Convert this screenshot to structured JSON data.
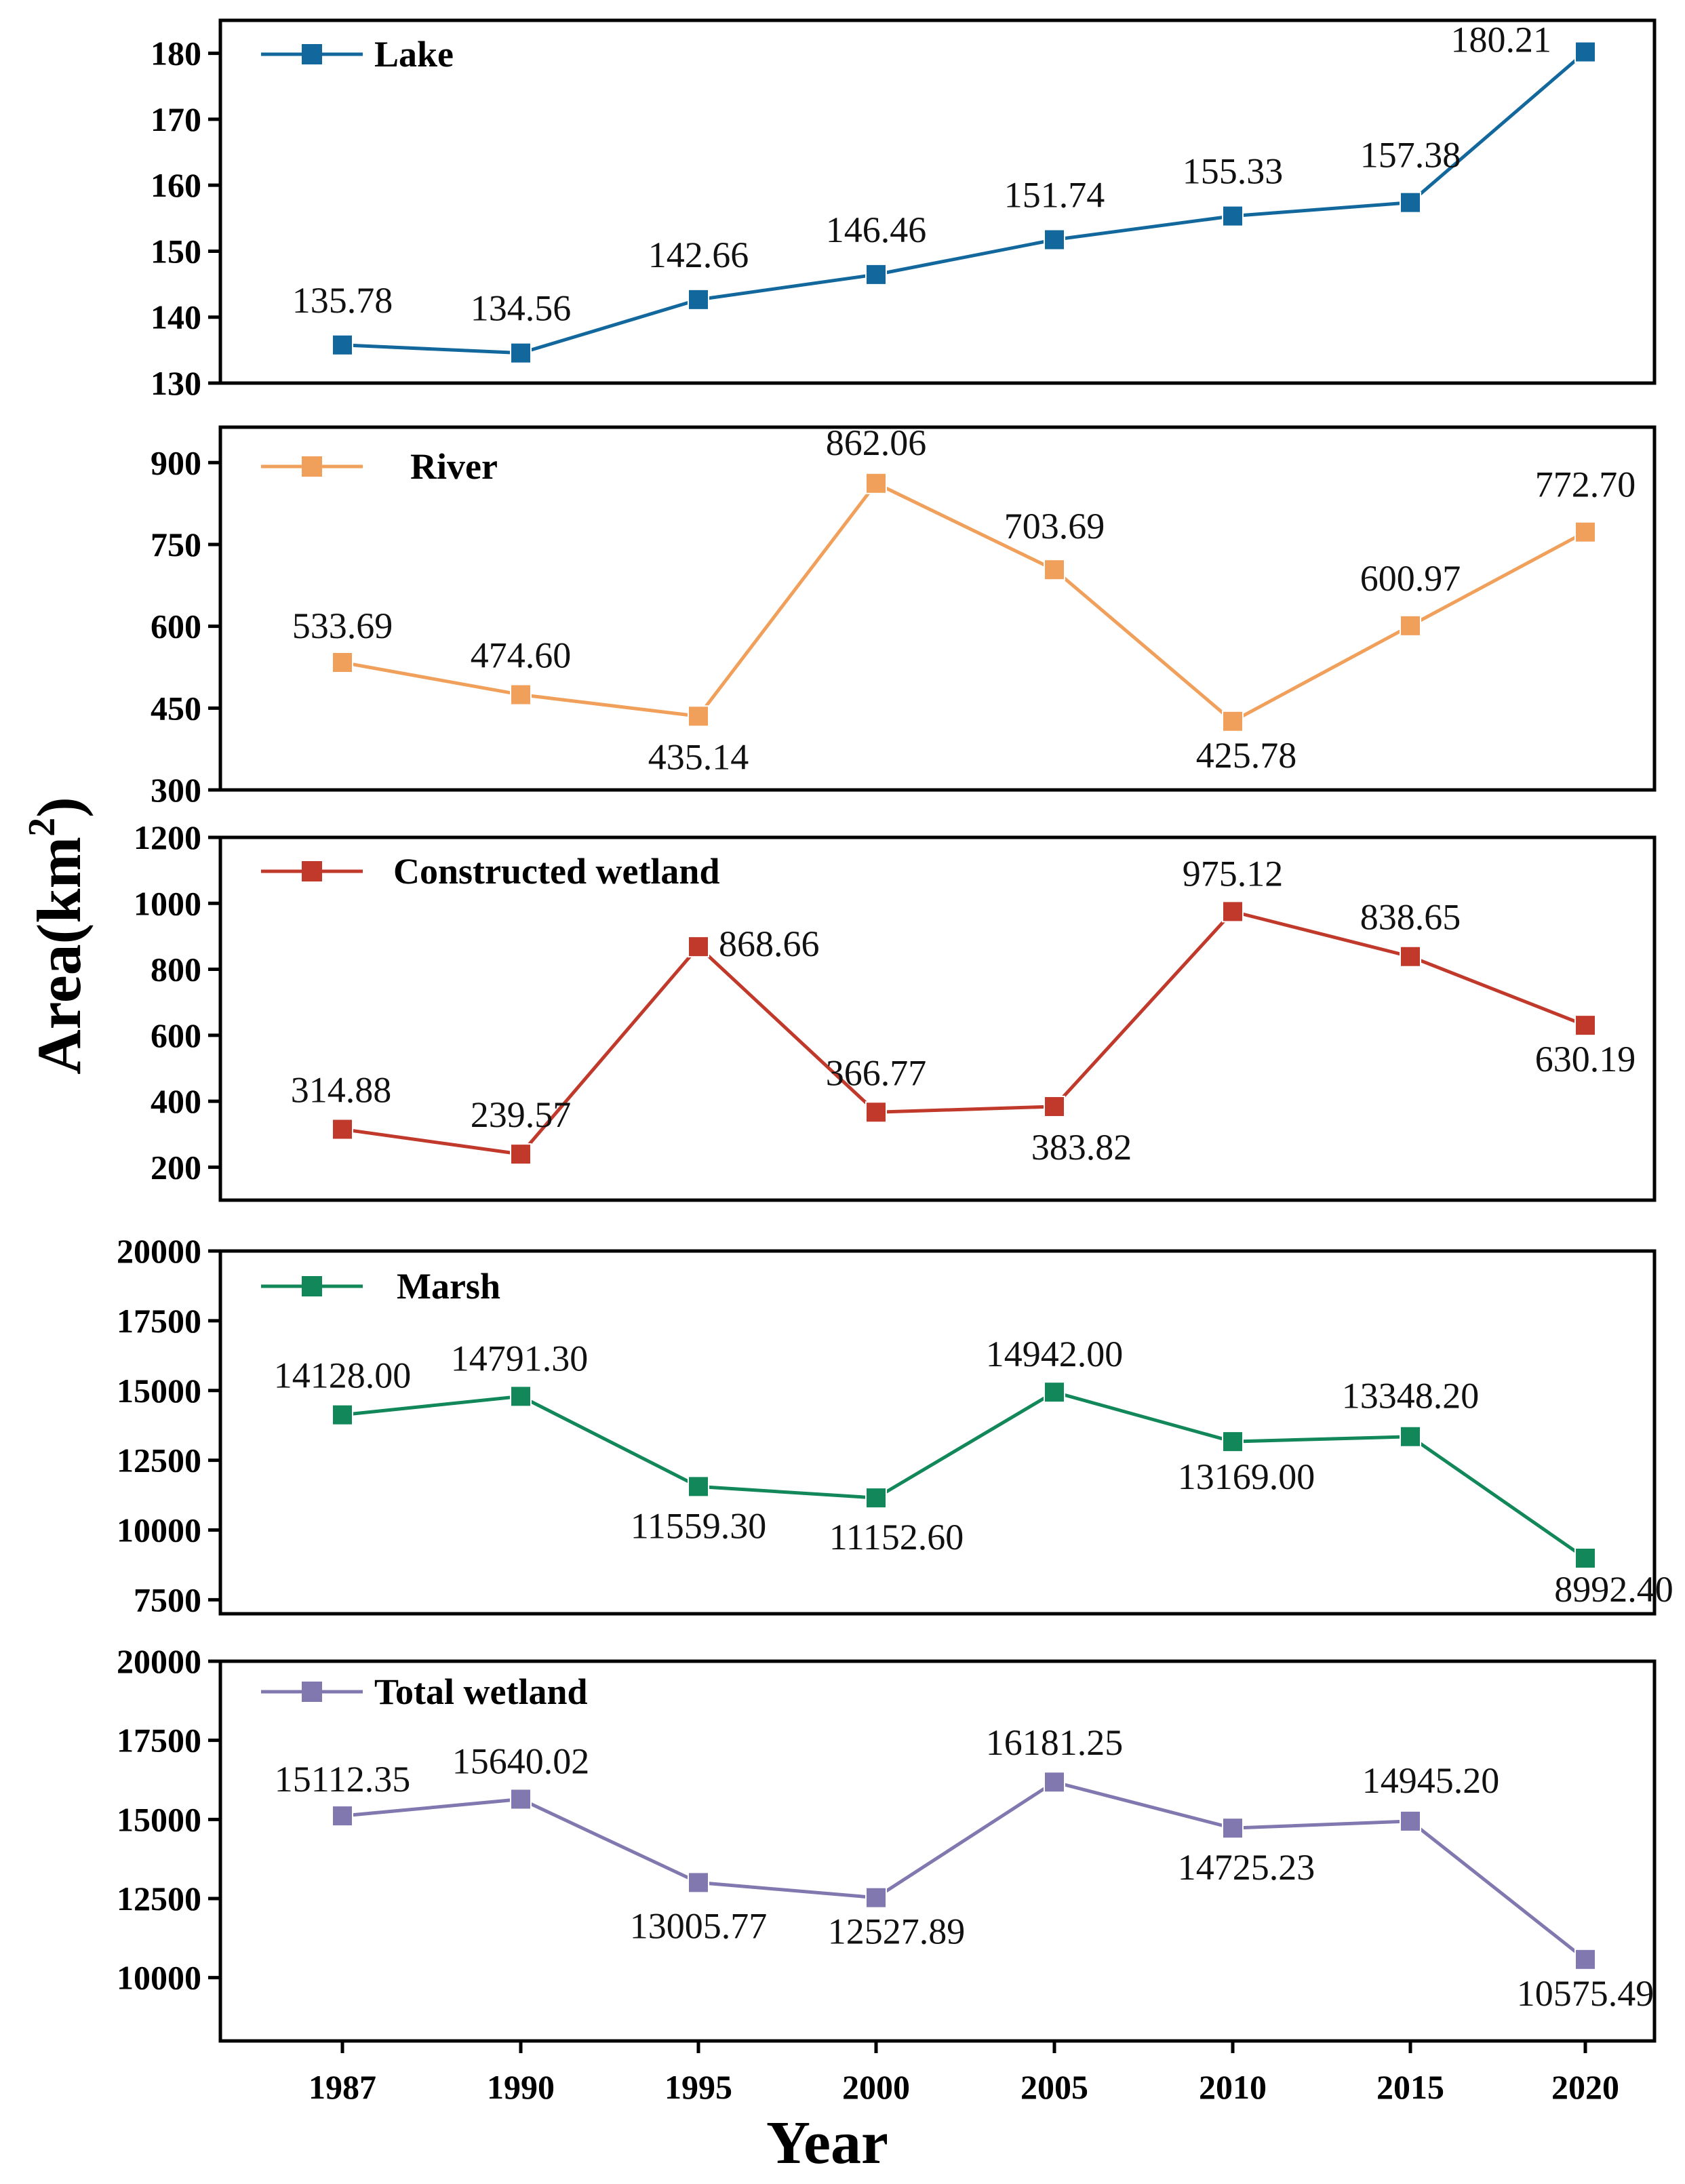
{
  "chart_data": {
    "type": "line",
    "x": [
      "1987",
      "1990",
      "1995",
      "2000",
      "2005",
      "2010",
      "2015",
      "2020"
    ],
    "xlabel": "Year",
    "ylabel": "Area(km",
    "ylabel_sup": "2",
    "ylabel_close": ")",
    "panels": [
      {
        "name": "Lake",
        "color": "#12689c",
        "values": [
          135.78,
          134.56,
          142.66,
          146.46,
          151.74,
          155.33,
          157.38,
          180.21
        ],
        "labels": [
          "135.78",
          "134.56",
          "142.66",
          "146.46",
          "151.74",
          "155.33",
          "157.38",
          "180.21"
        ],
        "ylim": [
          130,
          185
        ],
        "yticks": [
          "130",
          "140",
          "150",
          "160",
          "170",
          "180"
        ],
        "ytick_values": [
          130,
          140,
          150,
          160,
          170,
          180
        ]
      },
      {
        "name": "River",
        "color": "#f0a05a",
        "values": [
          533.69,
          474.6,
          435.14,
          862.06,
          703.69,
          425.78,
          600.97,
          772.7
        ],
        "labels": [
          "533.69",
          "474.60",
          "435.14",
          "862.06",
          "703.69",
          "425.78",
          "600.97",
          "772.70"
        ],
        "ylim": [
          300,
          965
        ],
        "yticks": [
          "300",
          "450",
          "600",
          "750",
          "900"
        ],
        "ytick_values": [
          300,
          450,
          600,
          750,
          900
        ]
      },
      {
        "name": "Constructed wetland",
        "color": "#c0392b",
        "values": [
          314.88,
          239.57,
          868.66,
          366.77,
          383.82,
          975.12,
          838.65,
          630.19
        ],
        "labels": [
          "314.88",
          "239.57",
          "868.66",
          "366.77",
          "383.82",
          "975.12",
          "838.65",
          "630.19"
        ],
        "ylim": [
          100,
          1200
        ],
        "yticks": [
          "200",
          "400",
          "600",
          "800",
          "1000",
          "1200"
        ],
        "ytick_values": [
          200,
          400,
          600,
          800,
          1000,
          1200
        ]
      },
      {
        "name": "Marsh",
        "color": "#11875a",
        "values": [
          14128.0,
          14791.3,
          11559.3,
          11152.6,
          14942.0,
          13169.0,
          13348.2,
          8992.4
        ],
        "labels": [
          "14128.00",
          "14791.30",
          "11559.30",
          "11152.60",
          "14942.00",
          "13169.00",
          "13348.20",
          "8992.40"
        ],
        "ylim": [
          7000,
          20000
        ],
        "yticks": [
          "7500",
          "10000",
          "12500",
          "15000",
          "17500",
          "20000"
        ],
        "ytick_values": [
          7500,
          10000,
          12500,
          15000,
          17500,
          20000
        ]
      },
      {
        "name": "Total wetland",
        "color": "#8278b0",
        "values": [
          15112.35,
          15640.02,
          13005.77,
          12527.89,
          16181.25,
          14725.23,
          14945.2,
          10575.49
        ],
        "labels": [
          "15112.35",
          "15640.02",
          "13005.77",
          "12527.89",
          "16181.25",
          "14725.23",
          "14945.20",
          "10575.49"
        ],
        "ylim": [
          8000,
          20000
        ],
        "yticks": [
          "10000",
          "12500",
          "15000",
          "17500",
          "20000"
        ],
        "ytick_values": [
          10000,
          12500,
          15000,
          17500,
          20000
        ]
      }
    ]
  }
}
